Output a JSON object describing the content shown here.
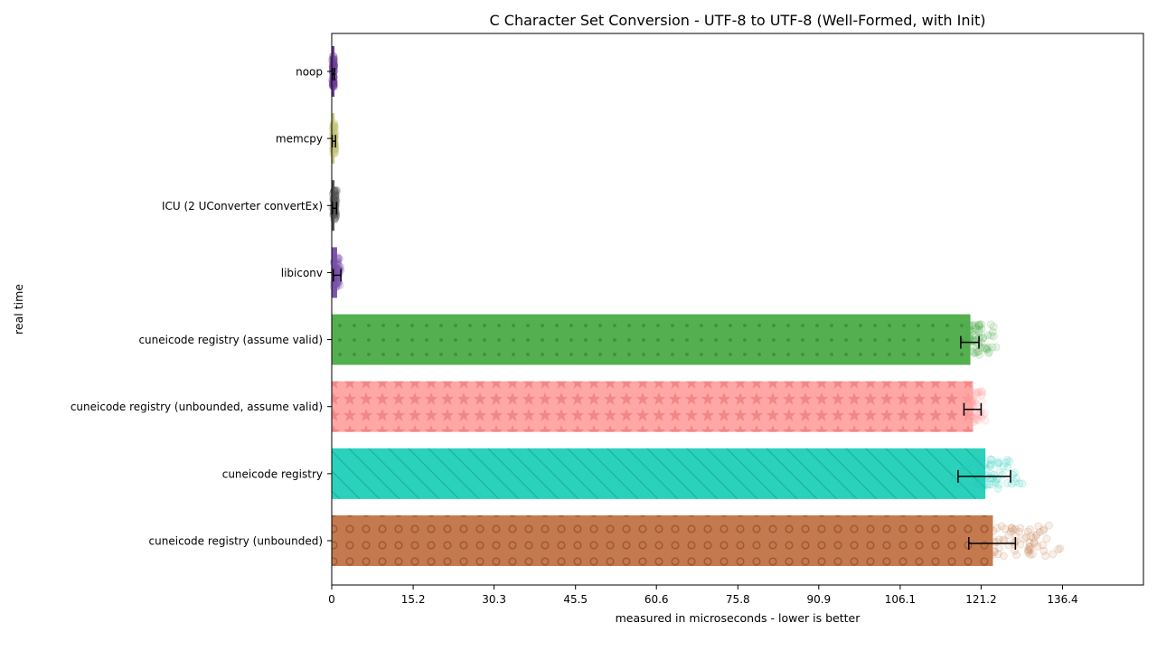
{
  "chart_data": {
    "type": "bar",
    "orientation": "horizontal",
    "title": "C Character Set Conversion - UTF-8 to UTF-8 (Well-Formed, with Init)",
    "xlabel": "measured in microseconds - lower is better",
    "ylabel": "real time",
    "xlim": [
      0,
      151.5
    ],
    "xticks": [
      "0",
      "15.2",
      "30.3",
      "45.5",
      "60.6",
      "75.8",
      "90.9",
      "106.1",
      "121.2",
      "136.4"
    ],
    "grid": false,
    "legend": "none",
    "categories": [
      "noop",
      "memcpy",
      "ICU (2 UConverter convertEx)",
      "libiconv",
      "cuneicode registry (assume valid)",
      "cuneicode registry (unbounded, assume valid)",
      "cuneicode registry",
      "cuneicode registry (unbounded)"
    ],
    "values": [
      0.3,
      0.4,
      0.5,
      1.0,
      119.2,
      119.7,
      122.0,
      123.4
    ],
    "error_low": [
      0.1,
      0.1,
      0.1,
      0.3,
      117.4,
      118.0,
      116.9,
      118.9
    ],
    "error_high": [
      0.5,
      0.7,
      0.9,
      1.7,
      120.8,
      121.2,
      126.7,
      127.6
    ],
    "scatter_range": [
      [
        0.0,
        0.6
      ],
      [
        0.1,
        0.8
      ],
      [
        0.1,
        1.0
      ],
      [
        0.2,
        1.8
      ],
      [
        116.0,
        125.0
      ],
      [
        116.5,
        123.0
      ],
      [
        113.0,
        132.0
      ],
      [
        116.0,
        140.0
      ]
    ],
    "colors": [
      "#6a3d9a",
      "#c5c57a",
      "#555555",
      "#7b52ab",
      "#54b04f",
      "#ffa6a6",
      "#2ad1bb",
      "#c47a4e"
    ],
    "patterns": [
      "none",
      "none",
      "none",
      "none",
      "dots",
      "stars",
      "diagonal",
      "circles"
    ]
  }
}
